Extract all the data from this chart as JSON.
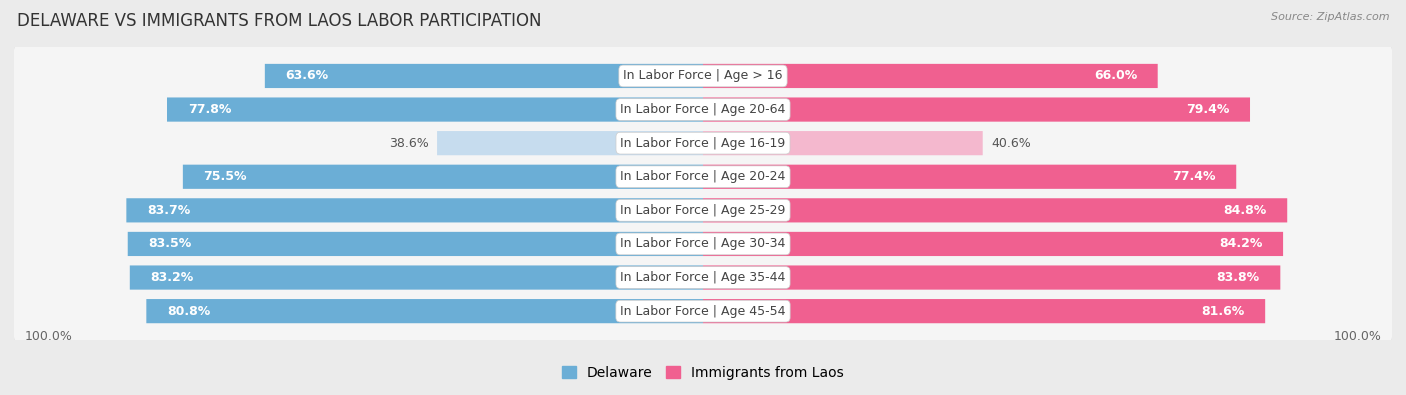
{
  "title": "DELAWARE VS IMMIGRANTS FROM LAOS LABOR PARTICIPATION",
  "source": "Source: ZipAtlas.com",
  "categories": [
    "In Labor Force | Age > 16",
    "In Labor Force | Age 20-64",
    "In Labor Force | Age 16-19",
    "In Labor Force | Age 20-24",
    "In Labor Force | Age 25-29",
    "In Labor Force | Age 30-34",
    "In Labor Force | Age 35-44",
    "In Labor Force | Age 45-54"
  ],
  "delaware_values": [
    63.6,
    77.8,
    38.6,
    75.5,
    83.7,
    83.5,
    83.2,
    80.8
  ],
  "laos_values": [
    66.0,
    79.4,
    40.6,
    77.4,
    84.8,
    84.2,
    83.8,
    81.6
  ],
  "delaware_color": "#6BAED6",
  "delaware_light_color": "#C6DCEE",
  "laos_color": "#F06090",
  "laos_light_color": "#F4B8CE",
  "background_color": "#EBEBEB",
  "row_bg_color": "#E0E0E0",
  "row_inner_color": "#F8F8F8",
  "max_value": 100.0,
  "label_fontsize": 9,
  "title_fontsize": 12,
  "legend_fontsize": 10,
  "axis_label_fontsize": 9,
  "low_threshold": 50
}
